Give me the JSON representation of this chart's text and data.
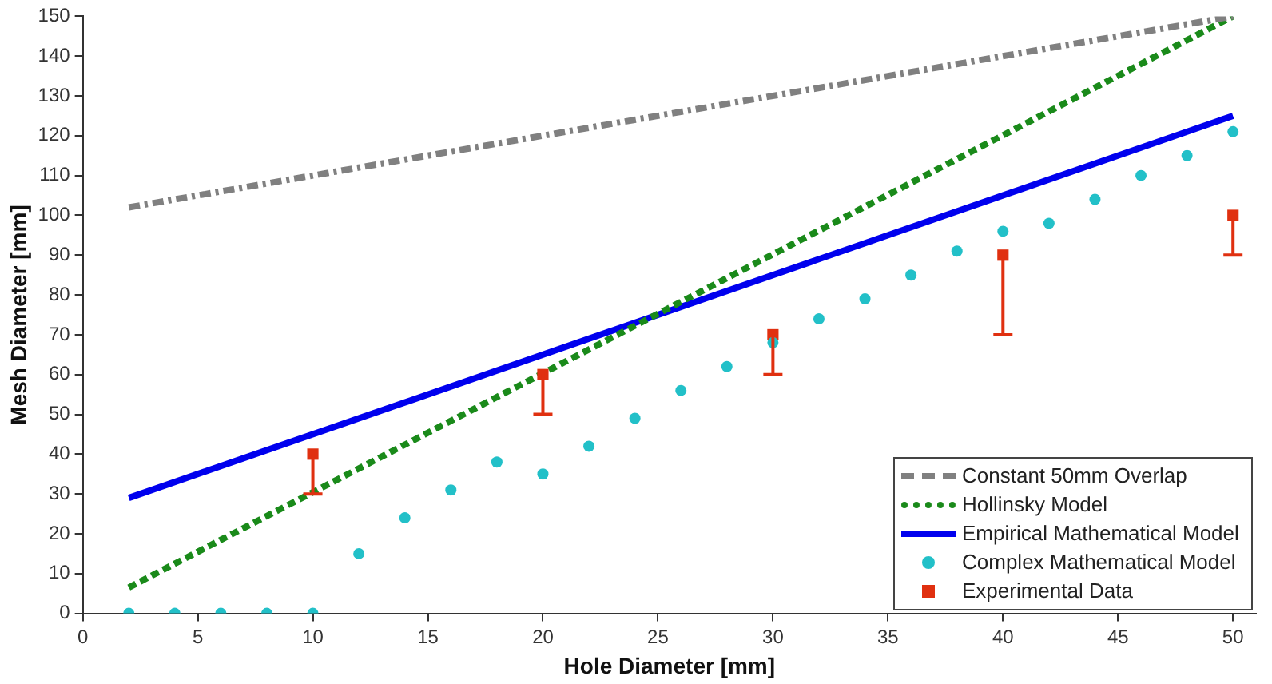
{
  "chart_data": {
    "type": "line",
    "xlabel": "Hole Diameter [mm]",
    "ylabel": "Mesh Diameter [mm]",
    "xlim": [
      0,
      51
    ],
    "xticks": [
      0,
      5,
      10,
      15,
      20,
      25,
      30,
      35,
      40,
      45,
      50
    ],
    "ylim": [
      0,
      150
    ],
    "yticks": [
      0,
      10,
      20,
      30,
      40,
      50,
      60,
      70,
      80,
      90,
      100,
      110,
      120,
      130,
      140,
      150
    ],
    "grid": false,
    "legend": "bottom right",
    "series": [
      {
        "name": "Constant 50mm Overlap",
        "color": "#808080",
        "line_style": "dashed",
        "marker": "none",
        "x": [
          2,
          50
        ],
        "values": [
          102,
          150
        ]
      },
      {
        "name": "Hollinsky Model",
        "color": "#1a8a1a",
        "line_style": "dotted",
        "marker": "none",
        "x": [
          2,
          50
        ],
        "values": [
          6.5,
          150
        ]
      },
      {
        "name": "Empirical Mathematical Model",
        "color": "#0000ee",
        "line_style": "solid",
        "marker": "none",
        "x": [
          2,
          50
        ],
        "values": [
          29,
          125
        ]
      },
      {
        "name": "Complex Mathematical Model",
        "type": "scatter",
        "color": "#22c0c8",
        "marker": "circle",
        "x": [
          2,
          4,
          6,
          8,
          10,
          12,
          14,
          16,
          18,
          20,
          22,
          24,
          26,
          28,
          30,
          32,
          34,
          36,
          38,
          40,
          42,
          44,
          46,
          48,
          50
        ],
        "values": [
          0,
          0,
          0,
          0,
          0,
          15,
          24,
          31,
          38,
          35,
          42,
          49,
          56,
          62,
          68,
          74,
          79,
          85,
          91,
          96,
          98,
          104,
          110,
          115,
          121
        ]
      },
      {
        "name": "Experimental Data",
        "type": "scatter",
        "color": "#e03010",
        "marker": "square",
        "x": [
          10,
          20,
          30,
          40,
          50
        ],
        "values": [
          40,
          60,
          70,
          90,
          100
        ],
        "errors": [
          [
            30,
            40
          ],
          [
            50,
            60
          ],
          [
            60,
            70
          ],
          [
            70,
            90
          ],
          [
            90,
            100
          ]
        ]
      }
    ]
  }
}
